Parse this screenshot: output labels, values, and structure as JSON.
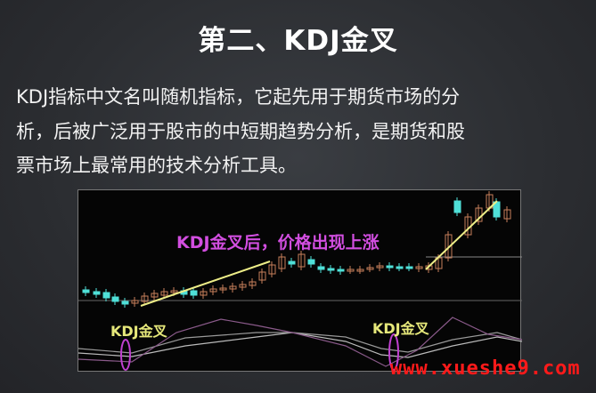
{
  "title": "第二、KDJ金叉",
  "paragraph": [
    "KDJ指标中文名叫随机指标，它起先用于期货市场的分",
    "析，后被广泛用于股市的中短期趋势分析，是期货和股",
    "票市场上最常用的技术分析工具。"
  ],
  "chart": {
    "annotation_rise": "KDJ金叉后，价格出现上涨",
    "annotation_cross_1": "KDJ金叉",
    "annotation_cross_2": "KDJ金叉",
    "colors": {
      "up_candle": "#c8805a",
      "down_candle": "#4fe0d8",
      "arrow": "#eeee88",
      "ellipse": "#c040d0"
    }
  },
  "watermark": "www.xueshe9.com"
}
